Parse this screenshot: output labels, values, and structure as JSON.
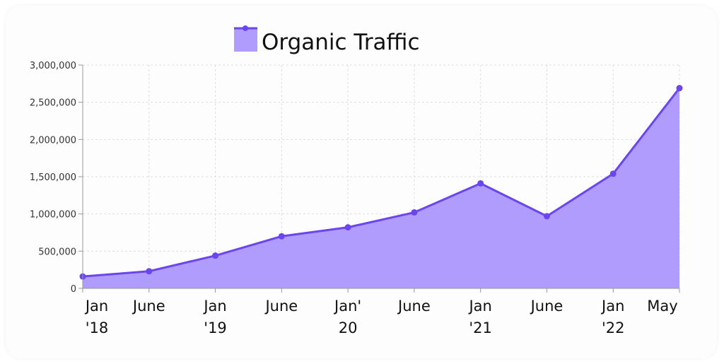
{
  "chart_data": {
    "type": "area",
    "x": [
      "Jan '18",
      "June",
      "Jan '19",
      "June",
      "Jan' 20",
      "June",
      "Jan '21",
      "June",
      "Jan '22",
      "May"
    ],
    "x_tick_labels": [
      [
        "Jan",
        "'18"
      ],
      [
        "June"
      ],
      [
        "Jan",
        "'19"
      ],
      [
        "June"
      ],
      [
        "Jan'",
        "20"
      ],
      [
        "June"
      ],
      [
        "Jan",
        "'21"
      ],
      [
        "June"
      ],
      [
        "Jan",
        "'22"
      ],
      [
        "May"
      ]
    ],
    "series": [
      {
        "name": "Organic Traffic",
        "values": [
          160000,
          230000,
          440000,
          700000,
          820000,
          1020000,
          1410000,
          970000,
          1540000,
          2690000
        ]
      }
    ],
    "ylim": [
      0,
      3000000
    ],
    "yticks": [
      "0",
      "500,000",
      "1,000,000",
      "1,500,000",
      "2,000,000",
      "2,500,000",
      "3,000,000"
    ],
    "ytick_values": [
      0,
      500000,
      1000000,
      1500000,
      2000000,
      2500000,
      3000000
    ],
    "grid": true,
    "legend_position": "top-center",
    "colors": {
      "line": "#6a45f0",
      "fill": "#b09cfd",
      "grid": "#dedede",
      "axis": "#999999"
    }
  }
}
